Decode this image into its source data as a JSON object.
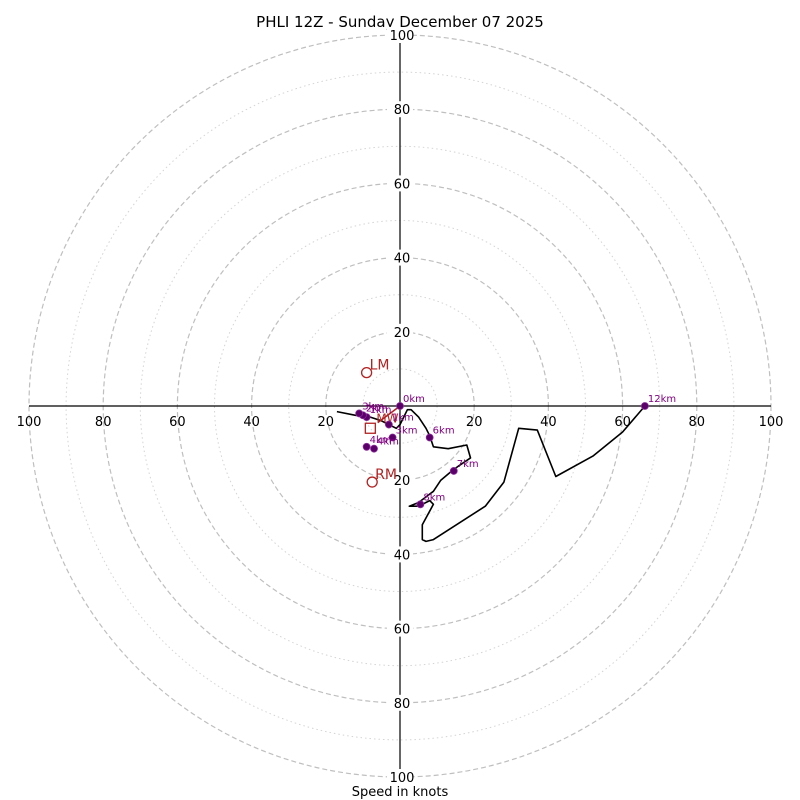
{
  "chart_data": {
    "type": "hodograph",
    "title": "PHLI 12Z - Sunday December 07 2025",
    "xlabel": "Speed in knots",
    "ylabel": "",
    "range": [
      -100,
      100
    ],
    "ring_values": [
      20,
      40,
      60,
      80,
      100
    ],
    "minor_ring_values": [
      10,
      30,
      50,
      70,
      90
    ],
    "tick_values": [
      100,
      80,
      60,
      40,
      20
    ],
    "grid": true,
    "trace": {
      "name": "hodograph",
      "color": "#000000",
      "points": [
        [
          -17,
          -1.5
        ],
        [
          -12,
          -2.5
        ],
        [
          -8,
          -3
        ],
        [
          -5,
          -4
        ],
        [
          -3,
          -5
        ],
        [
          -1,
          -6
        ],
        [
          0,
          -5
        ],
        [
          1,
          -3
        ],
        [
          2,
          -1
        ],
        [
          3,
          -1
        ],
        [
          5,
          -3
        ],
        [
          7,
          -6
        ],
        [
          8,
          -8
        ],
        [
          9,
          -11
        ],
        [
          13,
          -11.5
        ],
        [
          18,
          -10.5
        ],
        [
          19,
          -14
        ],
        [
          16,
          -16
        ],
        [
          14,
          -17.5
        ],
        [
          11,
          -20
        ],
        [
          9,
          -23
        ],
        [
          5,
          -26
        ],
        [
          2.5,
          -27
        ],
        [
          5,
          -27
        ],
        [
          8,
          -25.5
        ],
        [
          9,
          -26.5
        ],
        [
          6,
          -32
        ],
        [
          6,
          -36
        ],
        [
          7,
          -36.5
        ],
        [
          9,
          -36
        ],
        [
          23,
          -27
        ],
        [
          28,
          -20.5
        ],
        [
          32,
          -6
        ],
        [
          37,
          -6.5
        ],
        [
          42,
          -19
        ],
        [
          52,
          -13.5
        ],
        [
          60,
          -7
        ],
        [
          66,
          0
        ]
      ]
    },
    "height_markers": [
      {
        "label": "0km",
        "u": 0,
        "v": 0
      },
      {
        "label": "1km",
        "u": -3,
        "v": -5
      },
      {
        "label": "1km",
        "u": -9,
        "v": -3
      },
      {
        "label": "2km",
        "u": -10,
        "v": -2.5
      },
      {
        "label": "3km",
        "u": -11,
        "v": -2
      },
      {
        "label": "3km",
        "u": -2,
        "v": -8.5
      },
      {
        "label": "4km",
        "u": -7,
        "v": -11.5
      },
      {
        "label": "4km",
        "u": -9,
        "v": -11
      },
      {
        "label": "6km",
        "u": 8,
        "v": -8.5
      },
      {
        "label": "7km",
        "u": 14.5,
        "v": -17.5
      },
      {
        "label": "8km",
        "u": 5.5,
        "v": -26.5
      },
      {
        "label": "12km",
        "u": 66,
        "v": 0
      }
    ],
    "storm_motion": [
      {
        "label": "LM",
        "u": -9,
        "v": 9
      },
      {
        "label": "RM",
        "u": -7.5,
        "v": -20.5
      }
    ],
    "mean_wind": {
      "label": "MW",
      "u": -8,
      "v": -6
    },
    "shear_vector": {
      "from": [
        -6,
        -4.5
      ],
      "to": [
        0,
        0
      ]
    },
    "colors": {
      "rings": "#bfbfbf",
      "minor_rings": "#d4d4d4",
      "axes": "#000000",
      "trace": "#000000",
      "markers": "#5a0068",
      "marker_text": "#800080",
      "storm_motion": "#b22222",
      "title": "#000000"
    }
  }
}
